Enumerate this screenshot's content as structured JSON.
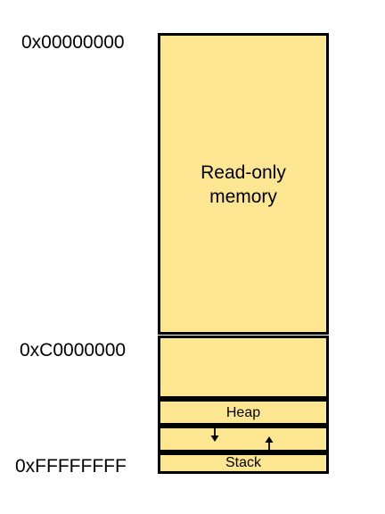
{
  "addresses": {
    "start": "0x00000000",
    "kernel": "0xC0000000",
    "end": "0xFFFFFFFF"
  },
  "regions": {
    "rom_line1": "Read-only",
    "rom_line2": "memory",
    "heap": "Heap",
    "stack": "Stack"
  },
  "colors": {
    "region_fill": "#fde691",
    "border": "#000000"
  }
}
